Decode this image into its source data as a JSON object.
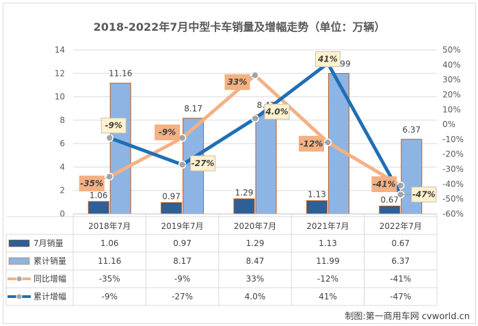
{
  "chart_data": {
    "type": "bar",
    "title": "2018-2022年7月中型卡车销量及增幅走势（单位：万辆）",
    "categories": [
      "2018年7月",
      "2019年7月",
      "2020年7月",
      "2021年7月",
      "2022年7月"
    ],
    "series": [
      {
        "name": "7月销量",
        "kind": "bar",
        "axis": "left",
        "values": [
          1.06,
          0.97,
          1.29,
          1.13,
          0.67
        ],
        "labels": [
          "1.06",
          "0.97",
          "1.29",
          "1.13",
          "0.67"
        ],
        "color": "#2e5f96"
      },
      {
        "name": "累计销量",
        "kind": "bar",
        "axis": "left",
        "values": [
          11.16,
          8.17,
          8.47,
          11.99,
          6.37
        ],
        "labels": [
          "11.16",
          "8.17",
          "8.47",
          "11.99",
          "6.37"
        ],
        "color": "#8eb4e3"
      },
      {
        "name": "同比增幅",
        "kind": "line",
        "axis": "right",
        "values": [
          -35,
          -9,
          33,
          -12,
          -41
        ],
        "labels": [
          "-35%",
          "-9%",
          "33%",
          "-12%",
          "-41%"
        ],
        "color": "#f4b183"
      },
      {
        "name": "累计增幅",
        "kind": "line",
        "axis": "right",
        "values": [
          -9,
          -27,
          4.0,
          41,
          -47
        ],
        "labels": [
          "-9%",
          "-27%",
          "4.0%",
          "41%",
          "-47%"
        ],
        "color": "#1f6fb4"
      }
    ],
    "left_axis": {
      "min": 0,
      "max": 14,
      "step": 2,
      "ticks": [
        "0",
        "2",
        "4",
        "6",
        "8",
        "10",
        "12",
        "14"
      ]
    },
    "right_axis": {
      "min": -60,
      "max": 50,
      "step": 10,
      "ticks": [
        "-60%",
        "-50%",
        "-40%",
        "-30%",
        "-20%",
        "-10%",
        "0%",
        "10%",
        "20%",
        "30%",
        "40%",
        "50%"
      ]
    },
    "grid": true,
    "data_table": true
  },
  "credit": "制图:第一商用车网 cvworld.cn"
}
